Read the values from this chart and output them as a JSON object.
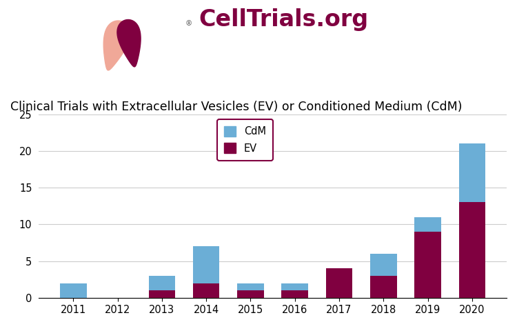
{
  "years": [
    2011,
    2012,
    2013,
    2014,
    2015,
    2016,
    2017,
    2018,
    2019,
    2020
  ],
  "cdm_values": [
    2,
    0,
    2,
    5,
    1,
    1,
    0,
    3,
    2,
    8
  ],
  "ev_values": [
    0,
    0,
    1,
    2,
    1,
    1,
    4,
    3,
    9,
    13
  ],
  "cdm_color": "#6baed6",
  "ev_color": "#800040",
  "title": "Clinical Trials with Extracellular Vesicles (EV) or Conditioned Medium (CdM)",
  "title_fontsize": 12.5,
  "ylim": [
    0,
    25
  ],
  "yticks": [
    0,
    5,
    10,
    15,
    20,
    25
  ],
  "legend_labels": [
    "CdM",
    "EV"
  ],
  "legend_edgecolor": "#800040",
  "bar_width": 0.6,
  "background_color": "#ffffff",
  "salmon_color": "#F0A898",
  "darkred_color": "#800040",
  "celltrials_color": "#800040"
}
